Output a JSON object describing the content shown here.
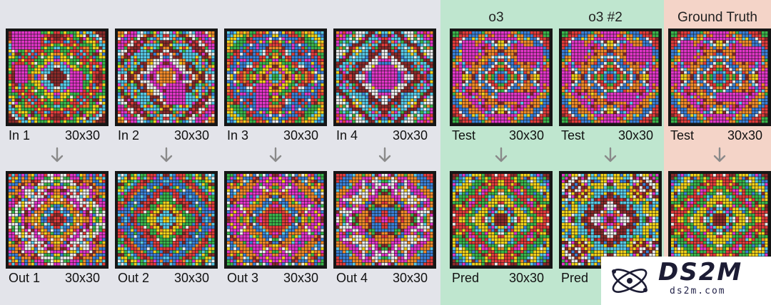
{
  "column_titles": {
    "o3": "o3",
    "o3_2": "o3 #2",
    "ground_truth": "Ground Truth"
  },
  "top_row": [
    {
      "label": "In 1",
      "size": "30x30"
    },
    {
      "label": "In 2",
      "size": "30x30"
    },
    {
      "label": "In 3",
      "size": "30x30"
    },
    {
      "label": "In 4",
      "size": "30x30"
    },
    {
      "label": "Test",
      "size": "30x30"
    },
    {
      "label": "Test",
      "size": "30x30"
    },
    {
      "label": "Test",
      "size": "30x30"
    }
  ],
  "bottom_row": [
    {
      "label": "Out 1",
      "size": "30x30"
    },
    {
      "label": "Out 2",
      "size": "30x30"
    },
    {
      "label": "Out 3",
      "size": "30x30"
    },
    {
      "label": "Out 4",
      "size": "30x30"
    },
    {
      "label": "Pred",
      "size": "30x30"
    },
    {
      "label": "Pred",
      "size": ""
    },
    {
      "label": "",
      "size": ""
    }
  ],
  "watermark": {
    "logo_text": "DS2M",
    "url": "ds2m.com",
    "icon": "atom-logo-icon"
  },
  "colors": {
    "background": "#e3e4ea",
    "test_panel": "#bfe6cf",
    "truth_panel": "#f4d4c8",
    "grid_border": "#161616",
    "arrow": "#8a8a8a"
  },
  "palette": [
    "#f28a28",
    "#3a7fd6",
    "#e23b3b",
    "#39b54a",
    "#f2d21a",
    "#56c9e6",
    "#8b2a2a",
    "#ececec",
    "#e234c8",
    "#9a9a9a"
  ]
}
